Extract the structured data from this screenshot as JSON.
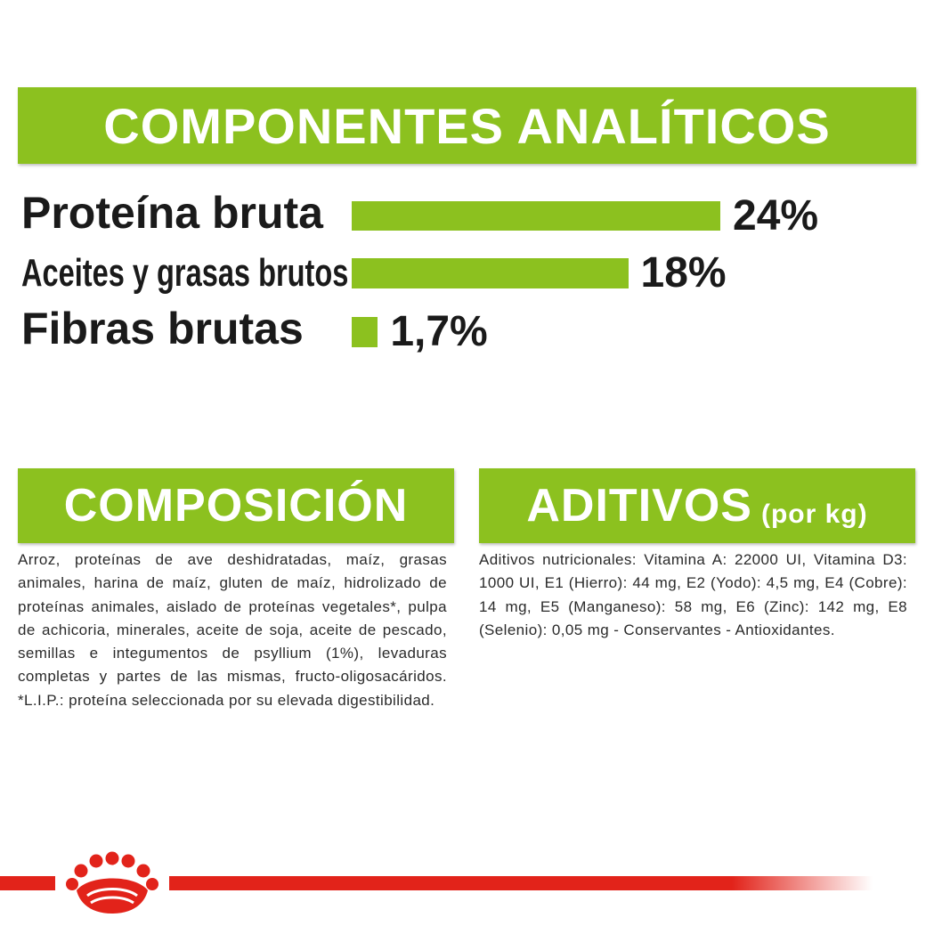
{
  "analytic": {
    "title": "COMPONENTES ANALÍTICOS",
    "rows": [
      {
        "label": "Proteína bruta",
        "value": "24%",
        "percent": 24
      },
      {
        "label": "Aceites y grasas brutos",
        "value": "18%",
        "percent": 18
      },
      {
        "label": "Fibras brutas",
        "value": "1,7%",
        "percent": 1.7
      }
    ]
  },
  "composition": {
    "title": "COMPOSICIÓN",
    "text": "Arroz, proteínas de ave deshidratadas, maíz, grasas animales, harina de maíz, gluten de maíz, hidrolizado de proteínas animales, aislado de proteínas vegetales*, pulpa de achicoria, minerales, aceite de soja, aceite de pescado, semillas e integumentos de psyllium (1%), levaduras completas y partes de las mismas, fructo-oligosacáridos. *L.I.P.: proteína seleccionada por su elevada digestibilidad."
  },
  "additives": {
    "title": "ADITIVOS",
    "subtitle": "(por kg)",
    "text": "Aditivos nutricionales: Vitamina A: 22000 UI, Vitamina D3: 1000 UI, E1 (Hierro): 44 mg, E2 (Yodo): 4,5 mg, E4 (Cobre): 14 mg, E5 (Manganeso): 58 mg, E6 (Zinc): 142 mg, E8 (Selenio): 0,05 mg - Conservantes - Antioxidantes."
  },
  "footer": {
    "logo": "royal-canin-crown-icon"
  },
  "colors": {
    "accent": "#8cc11f",
    "brand_red": "#e2231a",
    "text": "#1a1a1a"
  }
}
